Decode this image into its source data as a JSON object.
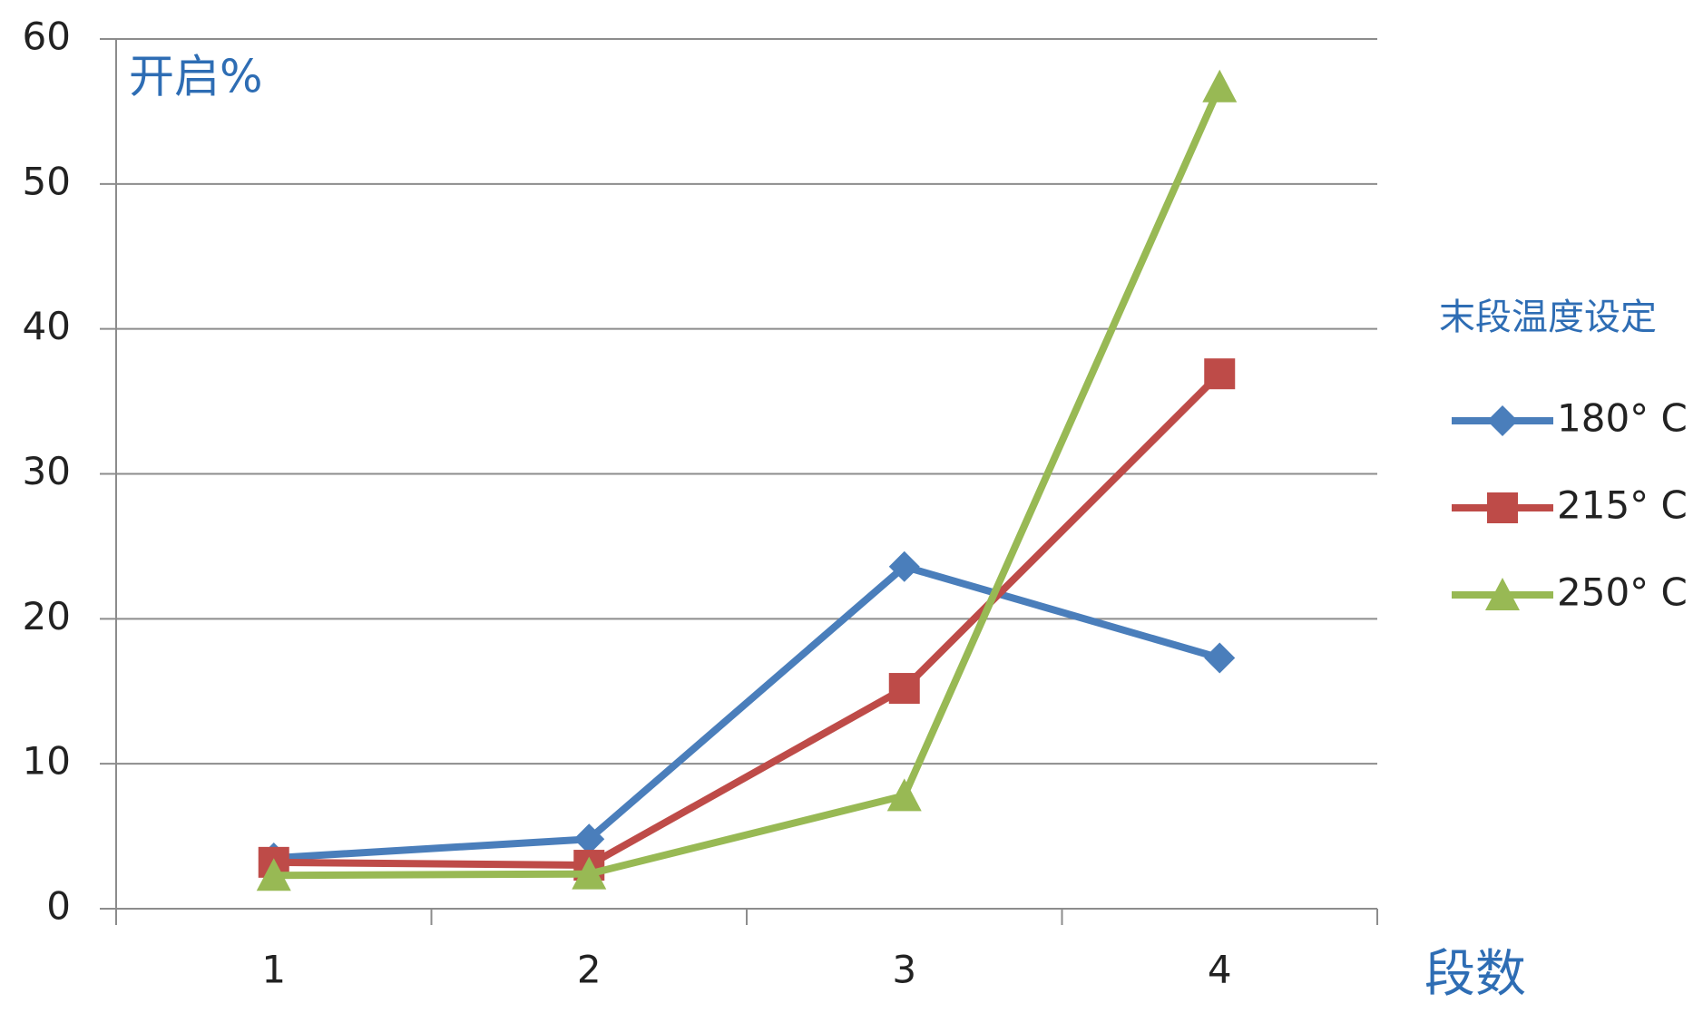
{
  "chart_data": {
    "type": "line",
    "y_label": "开启%",
    "x_label": "段数",
    "legend_title": "末段温度设定",
    "categories": [
      "1",
      "2",
      "3",
      "4"
    ],
    "series": [
      {
        "name": "180° C",
        "color": "#4a7ebb",
        "marker": "diamond",
        "values": [
          3.5,
          4.8,
          23.6,
          17.3
        ]
      },
      {
        "name": "215° C",
        "color": "#be4b48",
        "marker": "square",
        "values": [
          3.2,
          3.0,
          15.2,
          36.9
        ]
      },
      {
        "name": "250° C",
        "color": "#98b954",
        "marker": "triangle",
        "values": [
          2.3,
          2.4,
          7.8,
          56.7
        ]
      }
    ],
    "ylim": [
      0,
      60
    ],
    "yticks": [
      0,
      10,
      20,
      30,
      40,
      50,
      60
    ],
    "grid": true,
    "legend": "right"
  }
}
